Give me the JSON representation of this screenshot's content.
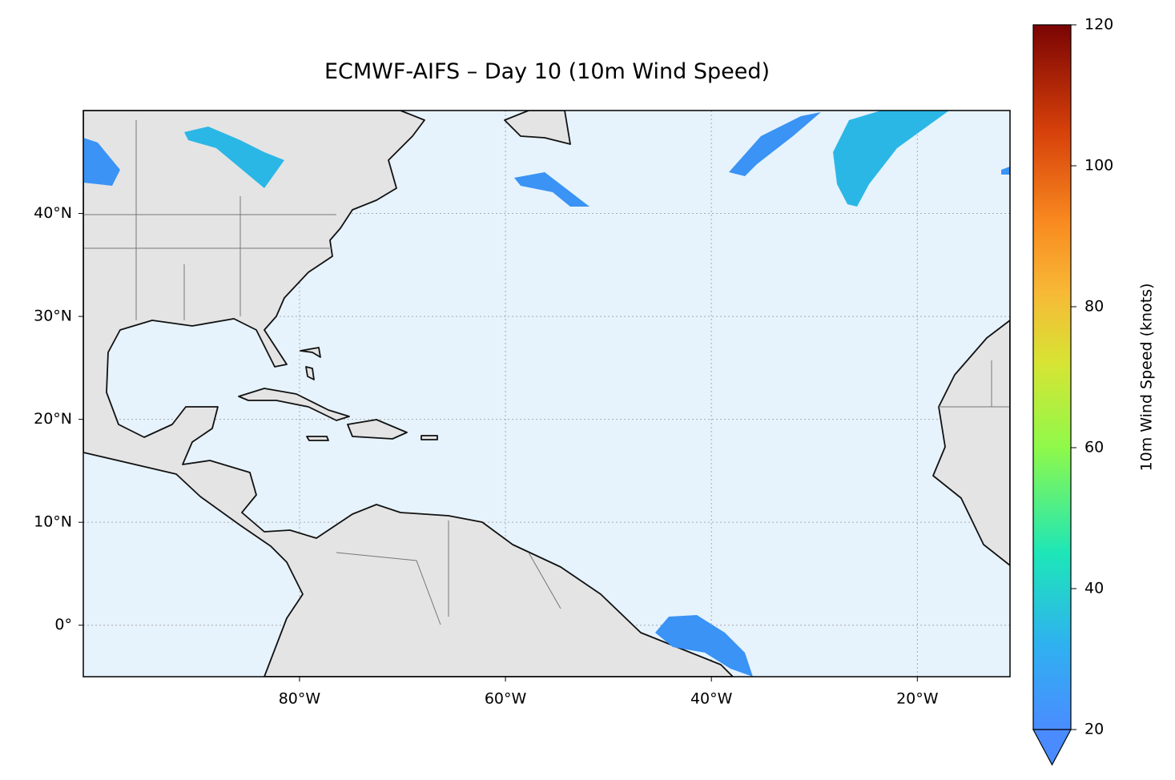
{
  "chart_data": {
    "type": "map",
    "title": "ECMWF-AIFS – Day 10 (10m Wind Speed)",
    "xlim": [
      -101,
      -11
    ],
    "ylim": [
      -5,
      50
    ],
    "xticks": [
      {
        "value": -80,
        "label": "80°W"
      },
      {
        "value": -60,
        "label": "60°W"
      },
      {
        "value": -40,
        "label": "40°W"
      },
      {
        "value": -20,
        "label": "20°W"
      }
    ],
    "yticks": [
      {
        "value": 0,
        "label": "0°"
      },
      {
        "value": 10,
        "label": "10°N"
      },
      {
        "value": 20,
        "label": "20°N"
      },
      {
        "value": 30,
        "label": "30°N"
      },
      {
        "value": 40,
        "label": "40°N"
      }
    ],
    "grid": true,
    "colorbar": {
      "label": "10m Wind Speed (knots)",
      "lim": [
        20,
        120
      ],
      "ticks": [
        20,
        40,
        60,
        80,
        100,
        120
      ]
    }
  }
}
